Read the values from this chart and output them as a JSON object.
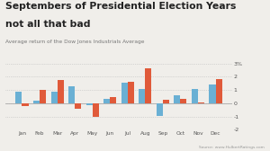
{
  "title": "Septembers of Presidential Election Years\nnot all that bad",
  "subtitle": "Average return of the Dow Jones Industrials Average",
  "source": "Source: www.HulbertRatings.com",
  "months": [
    "Jan",
    "Feb",
    "Mar",
    "Apr",
    "May",
    "Jun",
    "Jul",
    "Aug",
    "Sep",
    "Oct",
    "Nov",
    "Dec"
  ],
  "all_years": [
    0.85,
    0.2,
    0.85,
    1.3,
    -0.15,
    0.3,
    1.55,
    1.1,
    -0.95,
    0.6,
    1.05,
    1.4
  ],
  "election_years": [
    -0.2,
    1.0,
    1.75,
    -0.4,
    -1.05,
    0.5,
    1.6,
    2.6,
    0.25,
    0.35,
    0.08,
    1.85
  ],
  "all_years_color": "#6ab0d4",
  "election_years_color": "#e05a3a",
  "ylim": [
    -2,
    3
  ],
  "yticks": [
    -2,
    -1,
    0,
    1,
    2,
    3
  ],
  "ytick_labels": [
    "-2",
    "-1",
    "0",
    "1",
    "2",
    "3%"
  ],
  "background_color": "#f0eeea",
  "grid_color": "#bbbbbb",
  "bar_width": 0.36
}
